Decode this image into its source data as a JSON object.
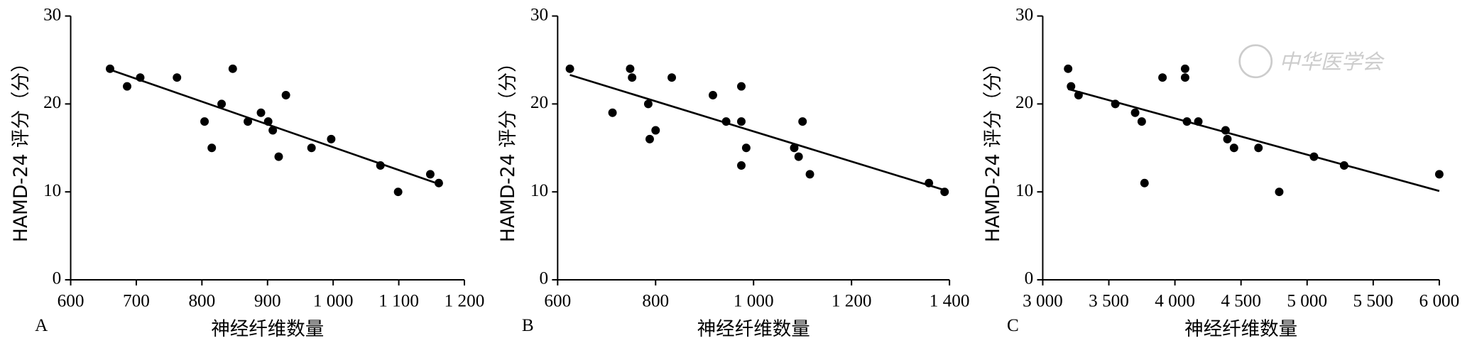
{
  "chart_data": [
    {
      "type": "scatter",
      "panel_label": "A",
      "x_label": "神经纤维数量",
      "y_label": "HAMD-24 评分（分）",
      "color": "#000000",
      "x": [
        660,
        686,
        706,
        762,
        804,
        815,
        830,
        847,
        870,
        890,
        901,
        908,
        917,
        928,
        967,
        997,
        1072,
        1099,
        1148,
        1161
      ],
      "y": [
        24,
        22,
        23,
        23,
        18,
        15,
        20,
        24,
        18,
        19,
        18,
        17,
        14,
        21,
        15,
        16,
        13,
        10,
        12,
        11
      ],
      "trend_line": {
        "x": [
          660,
          1161
        ],
        "y": [
          23.9,
          10.9
        ]
      },
      "xlim": [
        600,
        1200
      ],
      "ylim": [
        0,
        30
      ],
      "xticks": [
        600,
        700,
        800,
        900,
        {
          "value": 1000,
          "label": "1 000"
        },
        {
          "value": 1100,
          "label": "1 100"
        },
        {
          "value": 1200,
          "label": "1 200"
        }
      ],
      "yticks": [
        0,
        10,
        20,
        30
      ]
    },
    {
      "type": "scatter",
      "panel_label": "B",
      "x_label": "神经纤维数量",
      "y_label": "HAMD-24 评分（分）",
      "color": "#000000",
      "x": [
        625,
        748,
        712,
        752,
        785,
        788,
        800,
        833,
        917,
        944,
        975,
        975,
        975,
        985,
        1083,
        1092,
        1100,
        1115,
        1358,
        1390
      ],
      "y": [
        24,
        24,
        19,
        23,
        20,
        16,
        17,
        23,
        21,
        18,
        22,
        18,
        13,
        15,
        15,
        14,
        18,
        12,
        11,
        10
      ],
      "trend_line": {
        "x": [
          625,
          1390
        ],
        "y": [
          23.3,
          10.2
        ]
      },
      "xlim": [
        600,
        1400
      ],
      "ylim": [
        0,
        30
      ],
      "xticks": [
        600,
        800,
        {
          "value": 1000,
          "label": "1 000"
        },
        {
          "value": 1200,
          "label": "1 200"
        },
        {
          "value": 1400,
          "label": "1 400"
        }
      ],
      "yticks": [
        0,
        10,
        20,
        30
      ]
    },
    {
      "type": "scatter",
      "panel_label": "C",
      "x_label": "神经纤维数量",
      "y_label": "HAMD-24 评分（分）",
      "color": "#000000",
      "watermark": "中华医学会",
      "x": [
        3192,
        3214,
        3271,
        3549,
        3699,
        3749,
        3770,
        3906,
        4077,
        4077,
        4091,
        4177,
        4383,
        4397,
        4447,
        4632,
        4789,
        5052,
        5280,
        6000
      ],
      "y": [
        24,
        22,
        21,
        20,
        19,
        18,
        11,
        23,
        24,
        23,
        18,
        18,
        17,
        16,
        15,
        15,
        10,
        14,
        13,
        12
      ],
      "trend_line": {
        "x": [
          3192,
          6000
        ],
        "y": [
          21.7,
          10.1
        ]
      },
      "xlim": [
        3000,
        6000
      ],
      "ylim": [
        0,
        30
      ],
      "xticks": [
        {
          "value": 3000,
          "label": "3 000"
        },
        {
          "value": 3500,
          "label": "3 500"
        },
        {
          "value": 4000,
          "label": "4 000"
        },
        {
          "value": 4500,
          "label": "4 500"
        },
        {
          "value": 5000,
          "label": "5 000"
        },
        {
          "value": 5500,
          "label": "5 500"
        },
        {
          "value": 6000,
          "label": "6 000"
        }
      ],
      "yticks": [
        0,
        10,
        20,
        30
      ]
    }
  ]
}
